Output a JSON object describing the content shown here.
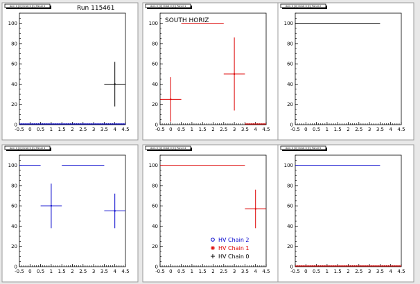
{
  "run_label": "Run 115461",
  "colors": {
    "Chain 2": "#0000cc",
    "Chain 1": "#dd0000",
    "Chain 0": "#000000"
  },
  "legend": [
    {
      "label": "HV Chain 2",
      "chain": "Chain 2",
      "marker": "circle"
    },
    {
      "label": "HV Chain 1",
      "chain": "Chain 1",
      "marker": "star"
    },
    {
      "label": "HV Chain 0",
      "chain": "Chain 0",
      "marker": "cross"
    }
  ],
  "chart_data": [
    {
      "type": "scatter",
      "title": "dcm 0 [0] Orbit 0 [h] Panel 0",
      "xlim": [
        -0.5,
        4.5
      ],
      "ylim": [
        0,
        110
      ],
      "xticks": [
        -0.5,
        0,
        0.5,
        1,
        1.5,
        2,
        2.5,
        3,
        3.5,
        4,
        4.5
      ],
      "yticks": [
        20,
        40,
        60,
        80,
        100
      ],
      "annotation": "",
      "lines": [
        {
          "chain": "Chain 2",
          "x0": -0.5,
          "x1": 4.5,
          "y": 0
        }
      ],
      "points": [
        {
          "chain": "Chain 0",
          "x": 4.0,
          "xerr": 0.5,
          "y": 40,
          "yerr": 22
        }
      ]
    },
    {
      "type": "scatter",
      "title": "dcm 0 [0] Orbit 0 [h] Panel 1",
      "xlim": [
        -0.5,
        4.5
      ],
      "ylim": [
        0,
        110
      ],
      "xticks": [
        -0.5,
        0,
        0.5,
        1,
        1.5,
        2,
        2.5,
        3,
        3.5,
        4,
        4.5
      ],
      "yticks": [
        20,
        40,
        60,
        80,
        100
      ],
      "annotation": "SOUTH HORIZ",
      "lines": [
        {
          "chain": "Chain 1",
          "x0": 0.5,
          "x1": 2.5,
          "y": 100
        },
        {
          "chain": "Chain 1",
          "x0": 3.5,
          "x1": 4.5,
          "y": 0
        }
      ],
      "points": [
        {
          "chain": "Chain 1",
          "x": 0.0,
          "xerr": 0.5,
          "y": 25,
          "yerr": 22
        },
        {
          "chain": "Chain 1",
          "x": 3.0,
          "xerr": 0.5,
          "y": 50,
          "yerr": 36
        }
      ]
    },
    {
      "type": "scatter",
      "title": "dcm 0 [0] Orbit 0 [h] Panel 2",
      "xlim": [
        -0.5,
        4.5
      ],
      "ylim": [
        0,
        110
      ],
      "xticks": [
        -0.5,
        0,
        0.5,
        1,
        1.5,
        2,
        2.5,
        3,
        3.5,
        4,
        4.5
      ],
      "yticks": [
        20,
        40,
        60,
        80,
        100
      ],
      "annotation": "",
      "lines": [
        {
          "chain": "Chain 0",
          "x0": -0.5,
          "x1": 3.5,
          "y": 100
        }
      ],
      "points": []
    },
    {
      "type": "scatter",
      "title": "dcm 0 [0] Orbit 0 [h] Panel 3",
      "xlim": [
        -0.5,
        4.5
      ],
      "ylim": [
        0,
        110
      ],
      "xticks": [
        -0.5,
        0,
        0.5,
        1,
        1.5,
        2,
        2.5,
        3,
        3.5,
        4,
        4.5
      ],
      "yticks": [
        20,
        40,
        60,
        80,
        100
      ],
      "annotation": "",
      "lines": [
        {
          "chain": "Chain 2",
          "x0": -0.5,
          "x1": 0.5,
          "y": 100
        },
        {
          "chain": "Chain 2",
          "x0": 1.5,
          "x1": 3.5,
          "y": 100
        }
      ],
      "points": [
        {
          "chain": "Chain 2",
          "x": 1.0,
          "xerr": 0.5,
          "y": 60,
          "yerr": 22
        },
        {
          "chain": "Chain 2",
          "x": 4.0,
          "xerr": 0.5,
          "y": 55,
          "yerr": 17
        }
      ]
    },
    {
      "type": "scatter",
      "title": "dcm 0 [0] Orbit 0 [h] Panel 4",
      "xlim": [
        -0.5,
        4.5
      ],
      "ylim": [
        0,
        110
      ],
      "xticks": [
        -0.5,
        0,
        0.5,
        1,
        1.5,
        2,
        2.5,
        3,
        3.5,
        4,
        4.5
      ],
      "yticks": [
        20,
        40,
        60,
        80,
        100
      ],
      "annotation": "",
      "lines": [
        {
          "chain": "Chain 1",
          "x0": -0.5,
          "x1": 3.5,
          "y": 100
        }
      ],
      "points": [
        {
          "chain": "Chain 1",
          "x": 4.0,
          "xerr": 0.5,
          "y": 57,
          "yerr": 19
        }
      ],
      "show_legend": true
    },
    {
      "type": "scatter",
      "title": "dcm 0 [0] Orbit 0 [h] Panel 5",
      "xlim": [
        -0.5,
        4.5
      ],
      "ylim": [
        0,
        110
      ],
      "xticks": [
        -0.5,
        0,
        0.5,
        1,
        1.5,
        2,
        2.5,
        3,
        3.5,
        4,
        4.5
      ],
      "yticks": [
        20,
        40,
        60,
        80,
        100
      ],
      "annotation": "",
      "lines": [
        {
          "chain": "Chain 2",
          "x0": -0.5,
          "x1": 3.5,
          "y": 100
        },
        {
          "chain": "Chain 1",
          "x0": -0.5,
          "x1": 4.5,
          "y": 0
        }
      ],
      "points": []
    }
  ]
}
